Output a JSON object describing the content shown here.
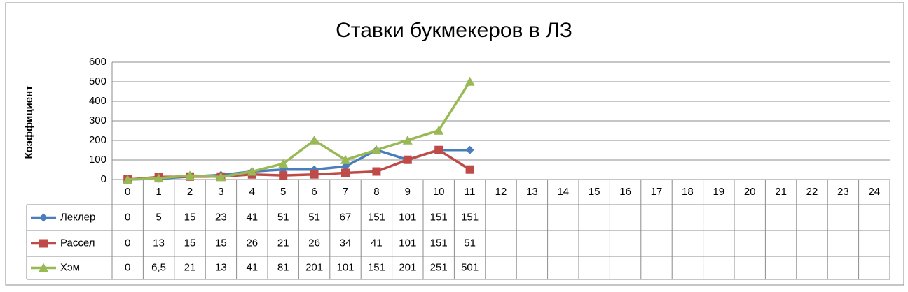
{
  "chart_data": {
    "type": "line",
    "title": "Ставки букмекеров в ЛЗ",
    "y_label": "Коэффициент",
    "categories": [
      "0",
      "1",
      "2",
      "3",
      "4",
      "5",
      "6",
      "7",
      "8",
      "9",
      "10",
      "11",
      "12",
      "13",
      "14",
      "15",
      "16",
      "17",
      "18",
      "19",
      "20",
      "21",
      "22",
      "23",
      "24"
    ],
    "series": [
      {
        "name": "Леклер",
        "color": "#4a7ebb",
        "marker": "diamond",
        "values": [
          0,
          5,
          15,
          23,
          41,
          51,
          51,
          67,
          151,
          101,
          151,
          151,
          null,
          null,
          null,
          null,
          null,
          null,
          null,
          null,
          null,
          null,
          null,
          null,
          null
        ]
      },
      {
        "name": "Рассел",
        "color": "#be4b48",
        "marker": "square",
        "values": [
          0,
          13,
          15,
          15,
          26,
          21,
          26,
          34,
          41,
          101,
          151,
          51,
          null,
          null,
          null,
          null,
          null,
          null,
          null,
          null,
          null,
          null,
          null,
          null,
          null
        ]
      },
      {
        "name": "Хэм",
        "color": "#98b954",
        "marker": "triangle",
        "values": [
          0,
          6.5,
          21,
          13,
          41,
          81,
          201,
          101,
          151,
          201,
          251,
          501,
          null,
          null,
          null,
          null,
          null,
          null,
          null,
          null,
          null,
          null,
          null,
          null,
          null
        ],
        "value_labels": [
          "0",
          "6,5",
          "21",
          "13",
          "41",
          "81",
          "201",
          "101",
          "151",
          "201",
          "251",
          "501",
          null,
          null,
          null,
          null,
          null,
          null,
          null,
          null,
          null,
          null,
          null,
          null,
          null
        ]
      }
    ],
    "ylim": [
      0,
      600
    ],
    "yticks": [
      0,
      100,
      200,
      300,
      400,
      500,
      600
    ],
    "grid": true,
    "data_table": true
  }
}
